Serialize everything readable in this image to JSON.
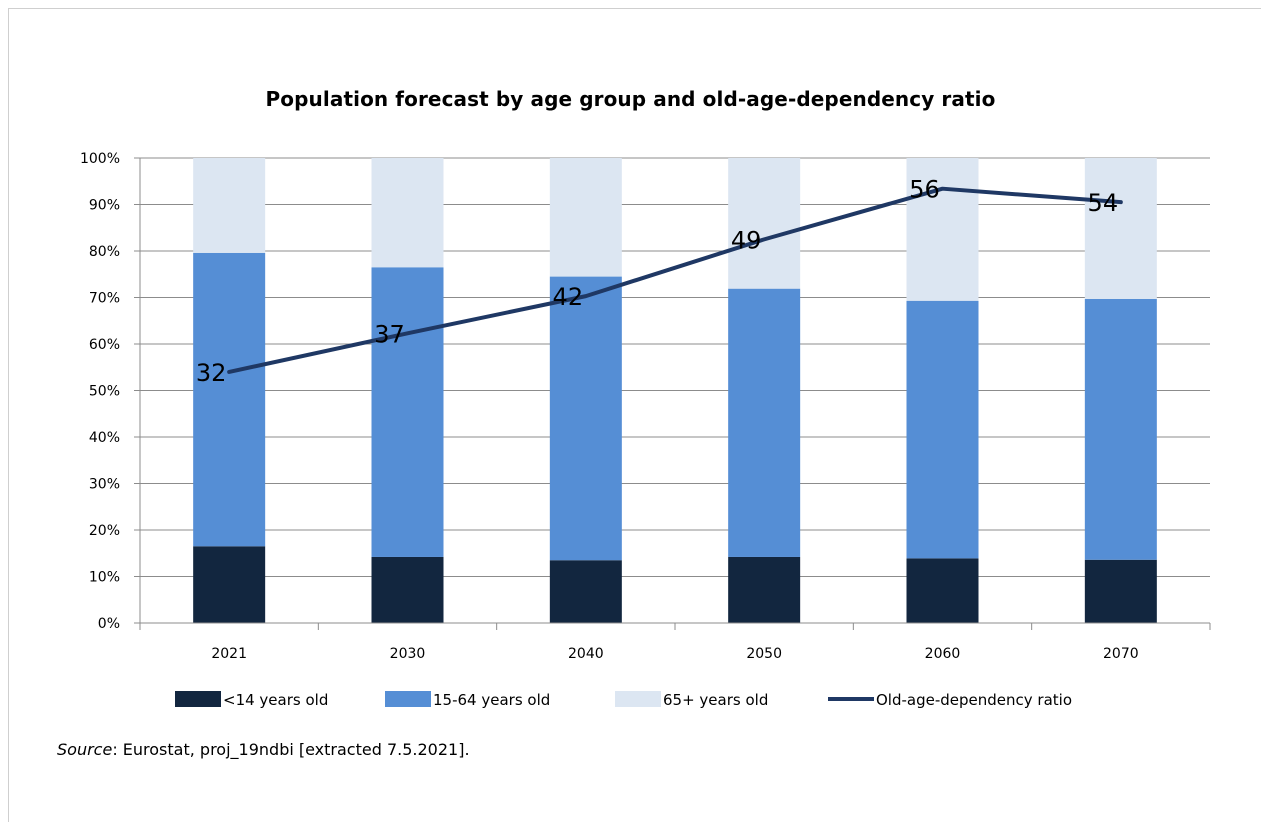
{
  "source": {
    "label": "Source",
    "text": ": Eurostat, proj_19ndbi [extracted 7.5.2021]."
  },
  "chart_data": {
    "type": "bar",
    "stacked": true,
    "title": "Population forecast by age group and old-age-dependency ratio",
    "xlabel": "",
    "ylabel": "",
    "categories": [
      "2021",
      "2030",
      "2040",
      "2050",
      "2060",
      "2070"
    ],
    "y_ticks": [
      "0%",
      "10%",
      "20%",
      "30%",
      "40%",
      "50%",
      "60%",
      "70%",
      "80%",
      "90%",
      "100%"
    ],
    "ylim": [
      0,
      100
    ],
    "grid": true,
    "legend_position": "bottom",
    "series": [
      {
        "name": "<14 years old",
        "type": "bar",
        "color": "#12263f",
        "values": [
          16.5,
          14.2,
          13.5,
          14.2,
          13.9,
          13.6
        ]
      },
      {
        "name": "15-64 years old",
        "type": "bar",
        "color": "#558ed5",
        "values": [
          63.1,
          62.3,
          61.0,
          57.7,
          55.4,
          56.1
        ]
      },
      {
        "name": "65+ years old",
        "type": "bar",
        "color": "#dce6f2",
        "values": [
          20.4,
          23.5,
          25.5,
          28.1,
          30.7,
          30.3
        ]
      },
      {
        "name": "Old-age-dependency ratio",
        "type": "line",
        "color": "#1f3864",
        "values": [
          32,
          37,
          42,
          49,
          56,
          54
        ],
        "plotted_percent": [
          54.0,
          62.3,
          70.3,
          82.5,
          93.4,
          90.5
        ]
      }
    ]
  }
}
